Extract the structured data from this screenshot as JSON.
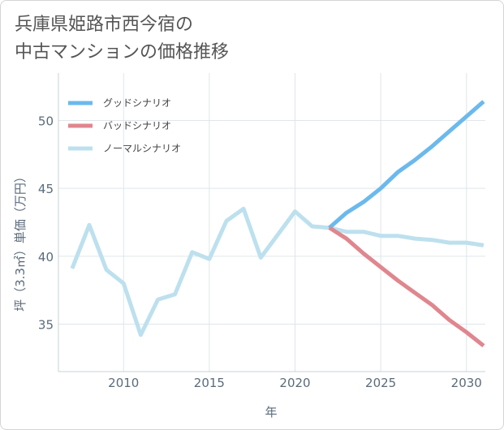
{
  "chart_data": {
    "type": "line",
    "title": [
      "兵庫県姫路市西今宿の",
      "中古マンションの価格推移"
    ],
    "xlabel": "年",
    "ylabel": "坪（3.3㎡）単価（万円）",
    "xlim": [
      2006.2,
      2031.1
    ],
    "ylim": [
      31.5,
      53.5
    ],
    "xticks": [
      2010,
      2015,
      2020,
      2025,
      2030
    ],
    "xtick_labels": [
      "2010",
      "2015",
      "2020",
      "2025",
      "2030"
    ],
    "yticks": [
      35,
      40,
      45,
      50
    ],
    "ytick_labels": [
      "35",
      "40",
      "45",
      "50"
    ],
    "grid": true,
    "legend_position": "top-left",
    "series": [
      {
        "name": "グッドシナリオ",
        "color": "#6bb9ed",
        "x": [
          2022,
          2023,
          2024,
          2025,
          2026,
          2027,
          2028,
          2029,
          2030,
          2031
        ],
        "y": [
          42.1,
          43.2,
          44.0,
          45.0,
          46.2,
          47.1,
          48.1,
          49.2,
          50.3,
          51.4
        ]
      },
      {
        "name": "バッドシナリオ",
        "color": "#e0868e",
        "x": [
          2022,
          2023,
          2024,
          2025,
          2026,
          2027,
          2028,
          2029,
          2030,
          2031
        ],
        "y": [
          42.1,
          41.3,
          40.2,
          39.2,
          38.2,
          37.3,
          36.4,
          35.3,
          34.4,
          33.4
        ]
      },
      {
        "name": "ノーマルシナリオ",
        "color": "#bde0ee",
        "x": [
          2007,
          2008,
          2009,
          2010,
          2011,
          2012,
          2013,
          2014,
          2015,
          2016,
          2017,
          2018,
          2019,
          2020,
          2021,
          2022,
          2023,
          2024,
          2025,
          2026,
          2027,
          2028,
          2029,
          2030,
          2031
        ],
        "y": [
          39.1,
          42.3,
          39.0,
          38.0,
          34.2,
          36.8,
          37.2,
          40.3,
          39.8,
          42.6,
          43.5,
          39.9,
          41.6,
          43.3,
          42.2,
          42.1,
          41.8,
          41.8,
          41.5,
          41.5,
          41.3,
          41.2,
          41.0,
          41.0,
          40.8
        ]
      }
    ]
  }
}
